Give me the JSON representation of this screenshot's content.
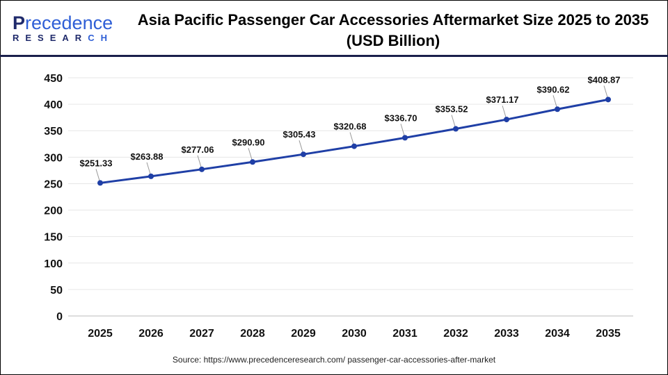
{
  "logo": {
    "line1_a": "P",
    "line1_b": "recedence",
    "line2_a": "RESEAR",
    "line2_b": "CH"
  },
  "title": "Asia Pacific Passenger Car Accessories Aftermarket Size 2025 to 2035 (USD Billion)",
  "source": "Source: https://www.precedenceresearch.com/ passenger-car-accessories-after-market",
  "colors": {
    "line": "#1f3fa6",
    "header_rule": "#1a1f4b"
  },
  "chart_data": {
    "type": "line",
    "title": "Asia Pacific Passenger Car Accessories Aftermarket Size 2025 to 2035 (USD Billion)",
    "categories": [
      "2025",
      "2026",
      "2027",
      "2028",
      "2029",
      "2030",
      "2031",
      "2032",
      "2033",
      "2034",
      "2035"
    ],
    "values": [
      251.33,
      263.88,
      277.06,
      290.9,
      305.43,
      320.68,
      336.7,
      353.52,
      371.17,
      390.62,
      408.87
    ],
    "labels": [
      "$251.33",
      "$263.88",
      "$277.06",
      "$290.90",
      "$305.43",
      "$320.68",
      "$336.70",
      "$353.52",
      "$371.17",
      "$390.62",
      "$408.87"
    ],
    "ylim": [
      0,
      450
    ],
    "yticks": [
      "0",
      "50",
      "100",
      "150",
      "200",
      "250",
      "300",
      "350",
      "400",
      "450"
    ],
    "grid": true,
    "legend": "none"
  }
}
